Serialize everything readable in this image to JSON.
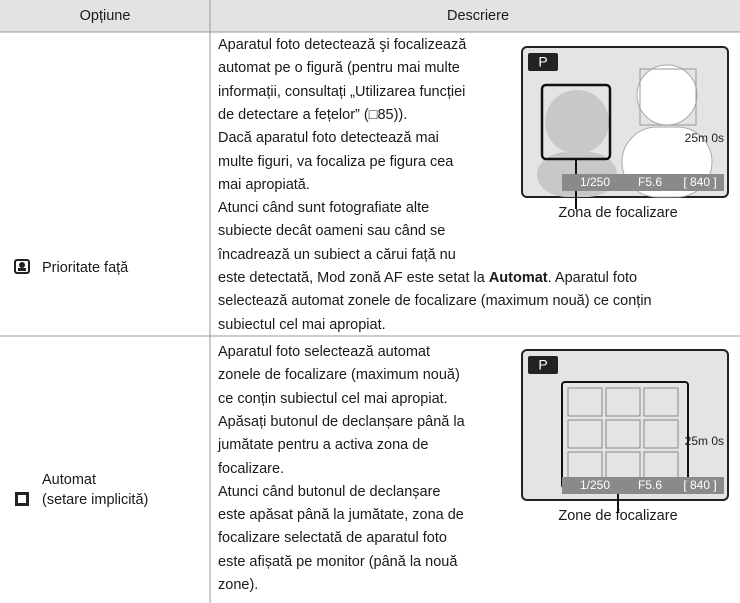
{
  "header": {
    "option": "Opțiune",
    "description": "Descriere"
  },
  "rows": [
    {
      "option": [
        "Prioritate față"
      ],
      "description": [
        "Aparatul foto detectează şi focalizează",
        "automat pe o figură (pentru mai multe",
        "informații, consultați „Utilizarea funcției",
        "de detectare a fețelor” (□85)).",
        "Dacă aparatul foto detectează mai",
        "multe figuri, va focaliza pe figura cea",
        "mai apropiată.",
        "Atunci când sunt fotografiate alte",
        "subiecte decât oameni sau când se",
        "încadrează un subiect a cărui față nu",
        [
          "este detectată, Mod zonă AF este setat la ",
          "Automat",
          ". Aparatul foto"
        ],
        "selectează automat zonele de focalizare (maximum nouă) ce conțin",
        "subiectul cel mai apropiat."
      ],
      "figure": {
        "label": "Zona de focalizare",
        "screen": {
          "mode": "P",
          "time": "25m 0s",
          "shutter": "1/250",
          "aperture": "F5.6",
          "exposures": "[ 840 ]"
        }
      }
    },
    {
      "option": [
        "Automat",
        "(setare implicită)"
      ],
      "description": [
        "Aparatul foto selectează automat",
        "zonele de focalizare (maximum nouă)",
        "ce conțin subiectul cel mai apropiat.",
        "Apăsați butonul de declanșare până la",
        "jumătate pentru a activa zona de",
        "focalizare.",
        "Atunci când butonul de declanșare",
        "este apăsat până la jumătate, zona de",
        "focalizare selectată de aparatul foto",
        "este afișată pe monitor (până la nouă",
        "zone)."
      ],
      "figure": {
        "label": "Zone de focalizare",
        "screen": {
          "mode": "P",
          "time": "25m 0s",
          "shutter": "1/250",
          "aperture": "F5.6",
          "exposures": "[ 840 ]"
        }
      }
    }
  ]
}
